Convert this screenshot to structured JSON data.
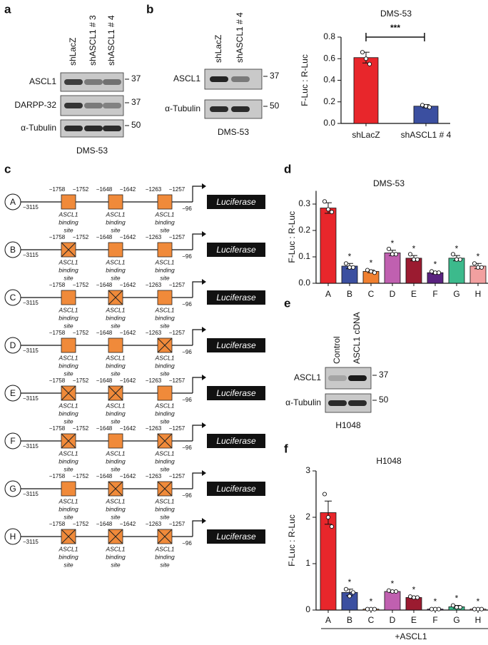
{
  "panel_labels": [
    "a",
    "b",
    "c",
    "d",
    "e",
    "f"
  ],
  "blots": [
    {
      "lanes": [
        "shLacZ",
        "shASCL1 # 3",
        "shASCL1 # 4"
      ],
      "rows": [
        {
          "name": "ASCL1",
          "marker": 37
        },
        {
          "name": "DARPP-32",
          "marker": 37
        },
        {
          "name": "α-Tubulin",
          "marker": 50
        }
      ],
      "cell_line": "DMS-53"
    },
    {
      "lanes": [
        "shLacZ",
        "shASCL1 # 4"
      ],
      "rows": [
        {
          "name": "ASCL1",
          "marker": 37
        },
        {
          "name": "α-Tubulin",
          "marker": 50
        }
      ],
      "cell_line": "DMS-53"
    },
    {
      "lanes": [
        "Control",
        "ASCL1 cDNA"
      ],
      "rows": [
        {
          "name": "ASCL1",
          "marker": 37
        },
        {
          "name": "α-Tubulin",
          "marker": 50
        }
      ],
      "cell_line": "H1048"
    }
  ],
  "diagram": {
    "start": "−3115",
    "end": "−96",
    "reporter": "Luciferase",
    "site_label": [
      "ASCL1",
      "binding",
      "site"
    ],
    "sites": [
      [
        "−1758",
        "−1752"
      ],
      [
        "−1648",
        "−1642"
      ],
      [
        "−1263",
        "−1257"
      ]
    ],
    "constructs": [
      {
        "label": "A",
        "mutated": [
          false,
          false,
          false
        ]
      },
      {
        "label": "B",
        "mutated": [
          true,
          false,
          false
        ]
      },
      {
        "label": "C",
        "mutated": [
          false,
          true,
          false
        ]
      },
      {
        "label": "D",
        "mutated": [
          false,
          false,
          true
        ]
      },
      {
        "label": "E",
        "mutated": [
          true,
          true,
          false
        ]
      },
      {
        "label": "F",
        "mutated": [
          true,
          false,
          true
        ]
      },
      {
        "label": "G",
        "mutated": [
          false,
          true,
          true
        ]
      },
      {
        "label": "H",
        "mutated": [
          true,
          true,
          true
        ]
      }
    ]
  },
  "chart_data": [
    {
      "type": "bar",
      "title": "DMS-53",
      "ylabel": "F-Luc : R-Luc",
      "categories": [
        "shLacZ",
        "shASCL1 # 4"
      ],
      "values": [
        0.61,
        0.16
      ],
      "errors": [
        0.05,
        0.015
      ],
      "points": [
        [
          0.66,
          0.6,
          0.55
        ],
        [
          0.17,
          0.16,
          0.15
        ]
      ],
      "colors": [
        "#e8262b",
        "#3b4fa0"
      ],
      "ylim": [
        0,
        0.8
      ],
      "yticks": [
        {
          "value": 0,
          "label": "0.0"
        },
        {
          "value": 0.2,
          "label": "0.2"
        },
        {
          "value": 0.4,
          "label": "0.4"
        },
        {
          "value": 0.6,
          "label": "0.6"
        },
        {
          "value": 0.8,
          "label": "0.8"
        }
      ],
      "annotation": "***"
    },
    {
      "type": "bar",
      "title": "DMS-53",
      "ylabel": "F-Luc : R-Luc",
      "categories": [
        "A",
        "B",
        "C",
        "D",
        "E",
        "F",
        "G",
        "H"
      ],
      "values": [
        0.285,
        0.065,
        0.045,
        0.115,
        0.095,
        0.04,
        0.095,
        0.065
      ],
      "errors": [
        0.02,
        0.01,
        0.005,
        0.01,
        0.01,
        0.005,
        0.01,
        0.01
      ],
      "points": [
        [
          0.31,
          0.28,
          0.27
        ],
        [
          0.075,
          0.06,
          0.06
        ],
        [
          0.05,
          0.045,
          0.04
        ],
        [
          0.13,
          0.11,
          0.11
        ],
        [
          0.11,
          0.09,
          0.09
        ],
        [
          0.045,
          0.04,
          0.04
        ],
        [
          0.11,
          0.09,
          0.09
        ],
        [
          0.075,
          0.06,
          0.06
        ]
      ],
      "colors": [
        "#e8262b",
        "#3b4fa0",
        "#f08030",
        "#c060b0",
        "#9b1b30",
        "#5a2380",
        "#3cba8c",
        "#f2a0a0"
      ],
      "ylim": [
        0,
        0.35
      ],
      "yticks": [
        {
          "value": 0,
          "label": "0.0"
        },
        {
          "value": 0.1,
          "label": "0.1"
        },
        {
          "value": 0.2,
          "label": "0.2"
        },
        {
          "value": 0.3,
          "label": "0.3"
        }
      ],
      "significance": [
        null,
        "*",
        "*",
        "*",
        "*",
        "*",
        "*",
        "*"
      ]
    },
    {
      "type": "bar",
      "title": "H1048",
      "ylabel": "F-Luc : R-Luc",
      "xlabel": "+ASCL1",
      "categories": [
        "A",
        "B",
        "C",
        "D",
        "E",
        "F",
        "G",
        "H"
      ],
      "values": [
        2.1,
        0.38,
        0.02,
        0.4,
        0.27,
        0.02,
        0.07,
        0.02
      ],
      "errors": [
        0.25,
        0.07,
        0.01,
        0.02,
        0.02,
        0.01,
        0.03,
        0.01
      ],
      "points": [
        [
          2.5,
          2.0,
          1.8
        ],
        [
          0.45,
          0.3,
          0.38
        ],
        [
          0.02,
          0.02,
          0.02
        ],
        [
          0.42,
          0.4,
          0.4
        ],
        [
          0.29,
          0.27,
          0.27
        ],
        [
          0.02,
          0.02,
          0.02
        ],
        [
          0.1,
          0.06,
          0.06
        ],
        [
          0.02,
          0.02,
          0.02
        ]
      ],
      "colors": [
        "#e8262b",
        "#3b4fa0",
        "#f08030",
        "#c060b0",
        "#9b1b30",
        "#5a2380",
        "#3cba8c",
        "#f2a0a0"
      ],
      "ylim": [
        0,
        3
      ],
      "yticks": [
        0,
        1,
        2,
        3
      ],
      "significance": [
        null,
        "*",
        "*",
        "*",
        "*",
        "*",
        "*",
        "*"
      ]
    }
  ]
}
